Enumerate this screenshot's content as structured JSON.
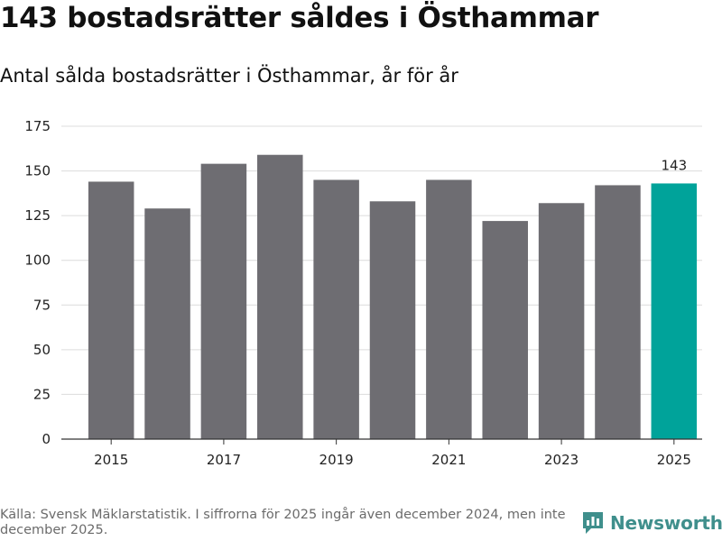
{
  "header": {
    "title": "143 bostadsrätter såldes i Östhammar",
    "subtitle": "Antal sålda bostadsrätter i Östhammar, år för år"
  },
  "chart_data": {
    "type": "bar",
    "title": "143 bostadsrätter såldes i Östhammar",
    "subtitle": "Antal sålda bostadsrätter i Östhammar, år för år",
    "xlabel": "",
    "ylabel": "",
    "categories": [
      "2015",
      "2016",
      "2017",
      "2018",
      "2019",
      "2020",
      "2021",
      "2022",
      "2023",
      "2024",
      "2025"
    ],
    "values": [
      144,
      129,
      154,
      159,
      145,
      133,
      145,
      122,
      132,
      142,
      143
    ],
    "highlight_index": 10,
    "highlight_label": "143",
    "ylim": [
      0,
      175
    ],
    "yticks": [
      0,
      25,
      50,
      75,
      100,
      125,
      150,
      175
    ],
    "xtick_labels": [
      "2015",
      "2017",
      "2019",
      "2021",
      "2023",
      "2025"
    ],
    "grid": true,
    "colors": {
      "bar": "#6e6d72",
      "highlight": "#00a39a",
      "grid": "#dcdcdc",
      "axis": "#333333"
    }
  },
  "footer": {
    "source": "Källa: Svensk Mäklarstatistik. I siffrorna för 2025 ingår även december 2024, men inte december 2025."
  },
  "brand": {
    "name": "Newsworthy",
    "icon": "newsworthy-logo-icon",
    "color": "#3f8f8c"
  }
}
